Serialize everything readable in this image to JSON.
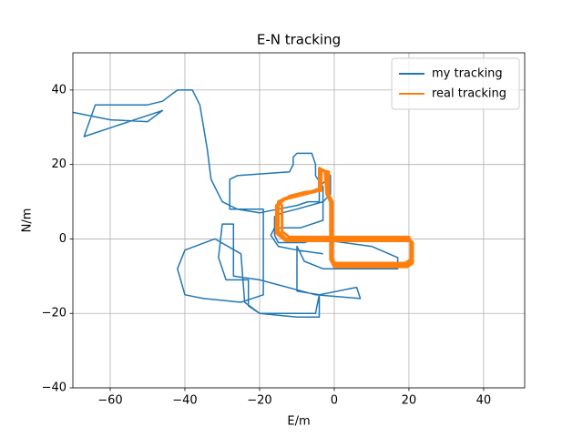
{
  "chart_data": {
    "type": "line",
    "title": "E-N tracking",
    "x_label": "E/m",
    "y_label": "N/m",
    "xlim": [
      -70,
      51
    ],
    "ylim": [
      -40,
      50
    ],
    "xticks": [
      {
        "value": -60,
        "label": "−60"
      },
      {
        "value": -40,
        "label": "−40"
      },
      {
        "value": -20,
        "label": "−20"
      },
      0,
      20,
      40
    ],
    "yticks": [
      {
        "value": -40,
        "label": "−40"
      },
      {
        "value": -20,
        "label": "−20"
      },
      0,
      20,
      40
    ],
    "grid": true,
    "legend": "upper right",
    "series": [
      {
        "name": "my tracking",
        "color": "#1f77b4",
        "x": [
          -70,
          -60,
          -50,
          -46,
          -67,
          -64,
          -50,
          -46,
          -42,
          -38,
          -36,
          -34,
          -33,
          -30,
          -26,
          -20,
          -15,
          -10,
          -7,
          -4,
          -4,
          -2,
          -2,
          -1,
          -1,
          -3,
          -10,
          -14,
          -16,
          -16,
          -15,
          -8,
          -5,
          10,
          17,
          17,
          -3,
          -8,
          -10,
          -10,
          -4,
          6,
          7,
          -5,
          -20,
          -27,
          -27,
          -30,
          -31,
          -29,
          -23,
          -23,
          -20,
          -5,
          -4,
          -4,
          -10,
          -20,
          -24,
          -25,
          -32,
          -40,
          -42,
          -40,
          -35,
          -25,
          -19,
          -19,
          -28,
          -28,
          -26,
          -12,
          -11,
          -11,
          -10,
          -6,
          -5,
          -5,
          -3,
          -3,
          -9,
          -16,
          -17,
          -15,
          -10,
          -3
        ],
        "y": [
          34,
          32,
          31.5,
          34.5,
          27.5,
          36,
          36,
          37,
          40,
          40,
          36,
          24,
          16,
          10,
          8,
          7,
          8,
          9,
          10,
          10,
          14,
          16,
          18,
          17,
          12,
          10,
          8,
          7,
          6,
          1,
          -1,
          -1,
          0,
          -2,
          -5,
          -8,
          -8,
          -6,
          -2,
          -14,
          -15,
          -13,
          -16,
          -15,
          -11,
          -10,
          4,
          4,
          -5,
          -11,
          -11,
          -18,
          -20,
          -20,
          -15,
          -21,
          -21,
          -20,
          -17,
          -4,
          0,
          -3,
          -8,
          -15,
          -16,
          -17,
          -15,
          8,
          8,
          16,
          17,
          18,
          20,
          22,
          23,
          23,
          20,
          17,
          14,
          5,
          3,
          3,
          1,
          -2,
          -3,
          -4
        ]
      },
      {
        "name": "real tracking",
        "color": "#ff7f0e",
        "x": [
          -15,
          -15,
          -13,
          0,
          20,
          21,
          21,
          19,
          0,
          -1,
          -1,
          -2,
          -2,
          -4,
          -4,
          -8,
          -12,
          -15,
          -14,
          -14,
          -12,
          0,
          20,
          20.5,
          20.5,
          19,
          0,
          -0.5,
          -0.5,
          -1.5,
          -1.5,
          -3.5,
          -3.5,
          -8,
          -12,
          -15.5,
          -15.5,
          -13,
          0,
          20.5,
          21,
          21,
          19.5,
          0,
          -1,
          -1,
          -2,
          -2.5,
          -4,
          -4,
          -8,
          -13,
          -15
        ],
        "y": [
          10,
          2,
          0,
          0,
          0,
          -1,
          -6,
          -7,
          -7,
          -5,
          10,
          12,
          18,
          19,
          13,
          12,
          11,
          10,
          9,
          2,
          0.5,
          0.5,
          0.5,
          -1,
          -5.5,
          -6.5,
          -6.5,
          -5,
          10,
          12,
          18,
          18.5,
          13,
          12.5,
          11.5,
          9,
          1.5,
          -0.5,
          -0.5,
          -0.5,
          -1.5,
          -6.5,
          -7.5,
          -7.5,
          -5.5,
          10.5,
          12,
          18,
          19,
          13.5,
          12,
          11,
          10
        ]
      }
    ]
  }
}
